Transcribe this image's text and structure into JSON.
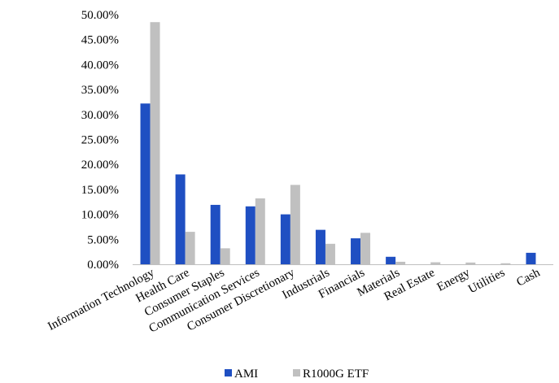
{
  "chart_data": {
    "type": "bar",
    "title": "",
    "xlabel": "",
    "ylabel": "",
    "ylim": [
      0,
      50
    ],
    "y_tick_step": 5,
    "y_tick_format": "percent_2dp",
    "y_ticks": [
      "0.00%",
      "5.00%",
      "10.00%",
      "15.00%",
      "20.00%",
      "25.00%",
      "30.00%",
      "35.00%",
      "40.00%",
      "45.00%",
      "50.00%"
    ],
    "grid": false,
    "legend_position": "bottom",
    "categories": [
      "Information Technology",
      "Health Care",
      "Consumer Staples",
      "Communication Services",
      "Consumer Discretionary",
      "Industrials",
      "Financials",
      "Materials",
      "Real Estate",
      "Energy",
      "Utilities",
      "Cash"
    ],
    "series": [
      {
        "name": "AMI",
        "color": "#1f4fc2",
        "values": [
          32.2,
          18.0,
          11.9,
          11.6,
          10.0,
          6.9,
          5.2,
          1.5,
          0.0,
          0.0,
          0.0,
          2.3
        ]
      },
      {
        "name": "R1000G ETF",
        "color": "#c0c0c0",
        "values": [
          48.5,
          6.5,
          3.2,
          13.2,
          15.9,
          4.1,
          6.3,
          0.5,
          0.4,
          0.35,
          0.2,
          0.0
        ]
      }
    ]
  }
}
